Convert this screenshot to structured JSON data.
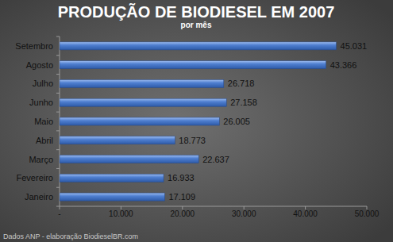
{
  "chart_data": {
    "type": "bar",
    "orientation": "horizontal",
    "title": "PRODUÇÃO DE BIODIESEL EM 2007",
    "subtitle": "por mês",
    "annotations": [
      "Dados ANP - elaboração BiodieselBR.com"
    ],
    "categories": [
      "Janeiro",
      "Fevereiro",
      "Março",
      "Abril",
      "Maio",
      "Junho",
      "Julho",
      "Agosto",
      "Setembro"
    ],
    "values": [
      17109,
      16933,
      22637,
      18773,
      26005,
      27158,
      26718,
      43366,
      45031
    ],
    "value_labels": [
      "17.109",
      "16.933",
      "22.637",
      "18.773",
      "26.005",
      "27.158",
      "26.718",
      "43.366",
      "45.031"
    ],
    "data_labels": true,
    "color": "#4f7fd0",
    "xlim": [
      0,
      50000
    ],
    "xticks": [
      {
        "value": 0,
        "label": "-"
      },
      {
        "value": 10000,
        "label": "10.000"
      },
      {
        "value": 20000,
        "label": "20.000"
      },
      {
        "value": 30000,
        "label": "30.000"
      },
      {
        "value": 40000,
        "label": "40.000"
      },
      {
        "value": 50000,
        "label": "50.000"
      }
    ],
    "grid": false
  }
}
